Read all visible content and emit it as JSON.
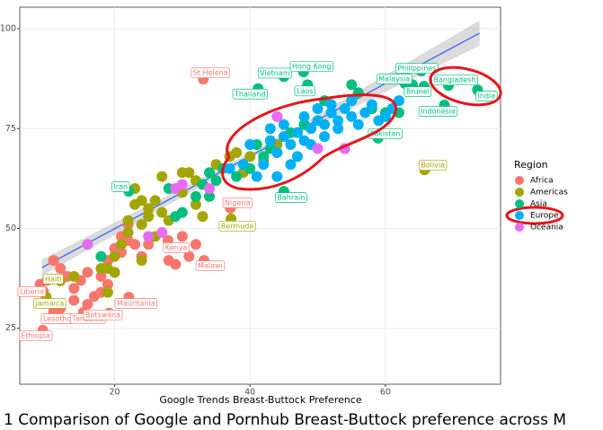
{
  "chart_data": {
    "type": "scatter",
    "xlabel": "Google Trends Breast-Buttock Preference",
    "caption": "1  Comparison of Google and Pornhub Breast-Buttock preference across M",
    "legend_title": "Region",
    "legend_position": "right",
    "grid": true,
    "xlim": [
      6,
      77
    ],
    "ylim": [
      11,
      105.4
    ],
    "xticks": [
      20,
      40,
      60
    ],
    "yticks": [
      25,
      50,
      75,
      100
    ],
    "trend": {
      "color": "#3366ff",
      "x": [
        9.3,
        73.9
      ],
      "y": [
        40.2,
        98.9
      ]
    },
    "series": [
      {
        "name": "Africa",
        "color": "#F8766D",
        "x": [
          33.1,
          37.1,
          27.9,
          33.2,
          9.5,
          22.1,
          11,
          15.4,
          19.2,
          9.4,
          10,
          12,
          13,
          14,
          14,
          15,
          16,
          17,
          18,
          18,
          19,
          19,
          20,
          20,
          21,
          21,
          22,
          23,
          24,
          25,
          28,
          29,
          30,
          31,
          32,
          12,
          16,
          9,
          11,
          22
        ],
        "y": [
          87.4,
          55.1,
          47,
          42,
          34.2,
          32.8,
          29.2,
          29,
          28.8,
          24.5,
          37,
          40,
          38,
          35,
          32,
          37,
          39,
          33,
          38,
          34,
          36,
          42,
          39,
          45,
          44,
          48,
          47,
          46,
          43,
          46,
          42,
          41,
          48,
          43,
          46,
          30,
          31,
          36,
          42,
          51
        ],
        "labels": [
          "St Helena",
          "Nigeria",
          "Kenya",
          "Malawi",
          "Liberia",
          "Mauritania",
          "Lesotho",
          "Tanzania",
          "Botswana",
          "Ethiopia",
          null,
          null,
          null,
          null,
          null,
          null,
          null,
          null,
          null,
          null,
          null,
          null,
          null,
          null,
          null,
          null,
          null,
          null,
          null,
          null,
          null,
          null,
          null,
          null,
          null,
          null,
          null,
          null,
          null,
          null
        ]
      },
      {
        "name": "Americas",
        "color": "#A3A500",
        "x": [
          65.8,
          37.2,
          12,
          9.9,
          14,
          19,
          19,
          20,
          20,
          21,
          22,
          22,
          23,
          23,
          24,
          24,
          25,
          25,
          26,
          27,
          27,
          28,
          30,
          30,
          31,
          32,
          32,
          33,
          35,
          37,
          38,
          39,
          40,
          42,
          44,
          18,
          24,
          26
        ],
        "y": [
          64.7,
          52.4,
          36.9,
          32.8,
          38,
          34,
          40,
          39,
          43,
          46,
          49,
          52,
          56,
          60,
          57,
          51,
          55,
          53,
          57,
          63,
          54,
          52,
          59,
          64,
          64,
          62,
          56,
          53,
          66,
          68,
          69,
          64,
          68,
          67,
          71,
          40,
          42,
          48
        ],
        "labels": [
          "Bolivia",
          "Bermude",
          "Haiti",
          "Jamaica",
          null,
          null,
          null,
          null,
          null,
          null,
          null,
          null,
          null,
          null,
          null,
          null,
          null,
          null,
          null,
          null,
          null,
          null,
          null,
          null,
          null,
          null,
          null,
          null,
          null,
          null,
          null,
          null,
          null,
          null,
          null,
          null,
          null,
          null
        ]
      },
      {
        "name": "Asia",
        "color": "#00BF7D",
        "x": [
          45,
          47.9,
          41.2,
          48.5,
          65.3,
          62.9,
          69.3,
          73.6,
          65.7,
          68.7,
          58.9,
          22.1,
          45,
          30,
          32,
          33,
          34,
          35,
          36,
          38,
          40,
          41,
          42,
          43,
          46,
          48,
          50,
          51,
          52,
          55,
          56,
          58,
          60,
          62,
          64,
          29,
          34,
          18,
          28
        ],
        "y": [
          88,
          89.2,
          85,
          86,
          89.4,
          86.3,
          85.8,
          84.7,
          85.6,
          80.9,
          72.6,
          59.3,
          59.3,
          54,
          58,
          61,
          64,
          62,
          65,
          63,
          65,
          71,
          68,
          70,
          74,
          76,
          80,
          82,
          79,
          86,
          84,
          80,
          79,
          79,
          86,
          53,
          58,
          43,
          60
        ],
        "labels": [
          "Vietnam",
          "Hong Kong",
          "Thailand",
          "Laos",
          "Philippines",
          "Malaysia",
          "Bangladesh",
          "India",
          "Brunei",
          "Indonesia",
          "Pakistan",
          "Iran",
          "Bahrain",
          null,
          null,
          null,
          null,
          null,
          null,
          null,
          null,
          null,
          null,
          null,
          null,
          null,
          null,
          null,
          null,
          null,
          null,
          null,
          null,
          null,
          null,
          null,
          null,
          null,
          null
        ]
      },
      {
        "name": "Europe",
        "color": "#00B0F6",
        "x": [
          37,
          39,
          40,
          41,
          42,
          43,
          43,
          44,
          45,
          45,
          46,
          47,
          47,
          48,
          48,
          49,
          49,
          50,
          50,
          51,
          51,
          52,
          52,
          53,
          53,
          54,
          55,
          55,
          56,
          57,
          58,
          59,
          60,
          61,
          62,
          46,
          44,
          54
        ],
        "y": [
          65,
          66,
          71,
          63,
          66,
          75,
          72,
          69,
          73,
          76,
          71,
          74,
          68,
          78,
          72,
          75,
          71,
          77,
          80,
          76,
          73,
          79,
          81,
          77,
          75,
          80,
          78,
          82,
          76,
          79,
          81,
          77,
          78,
          80,
          82,
          66,
          63,
          70
        ]
      },
      {
        "name": "Oceania",
        "color": "#E76BF3",
        "x": [
          16,
          29,
          30,
          34,
          44,
          50,
          54,
          27,
          25
        ],
        "y": [
          46,
          60,
          61,
          60,
          78,
          70,
          70,
          49,
          48
        ]
      }
    ]
  }
}
